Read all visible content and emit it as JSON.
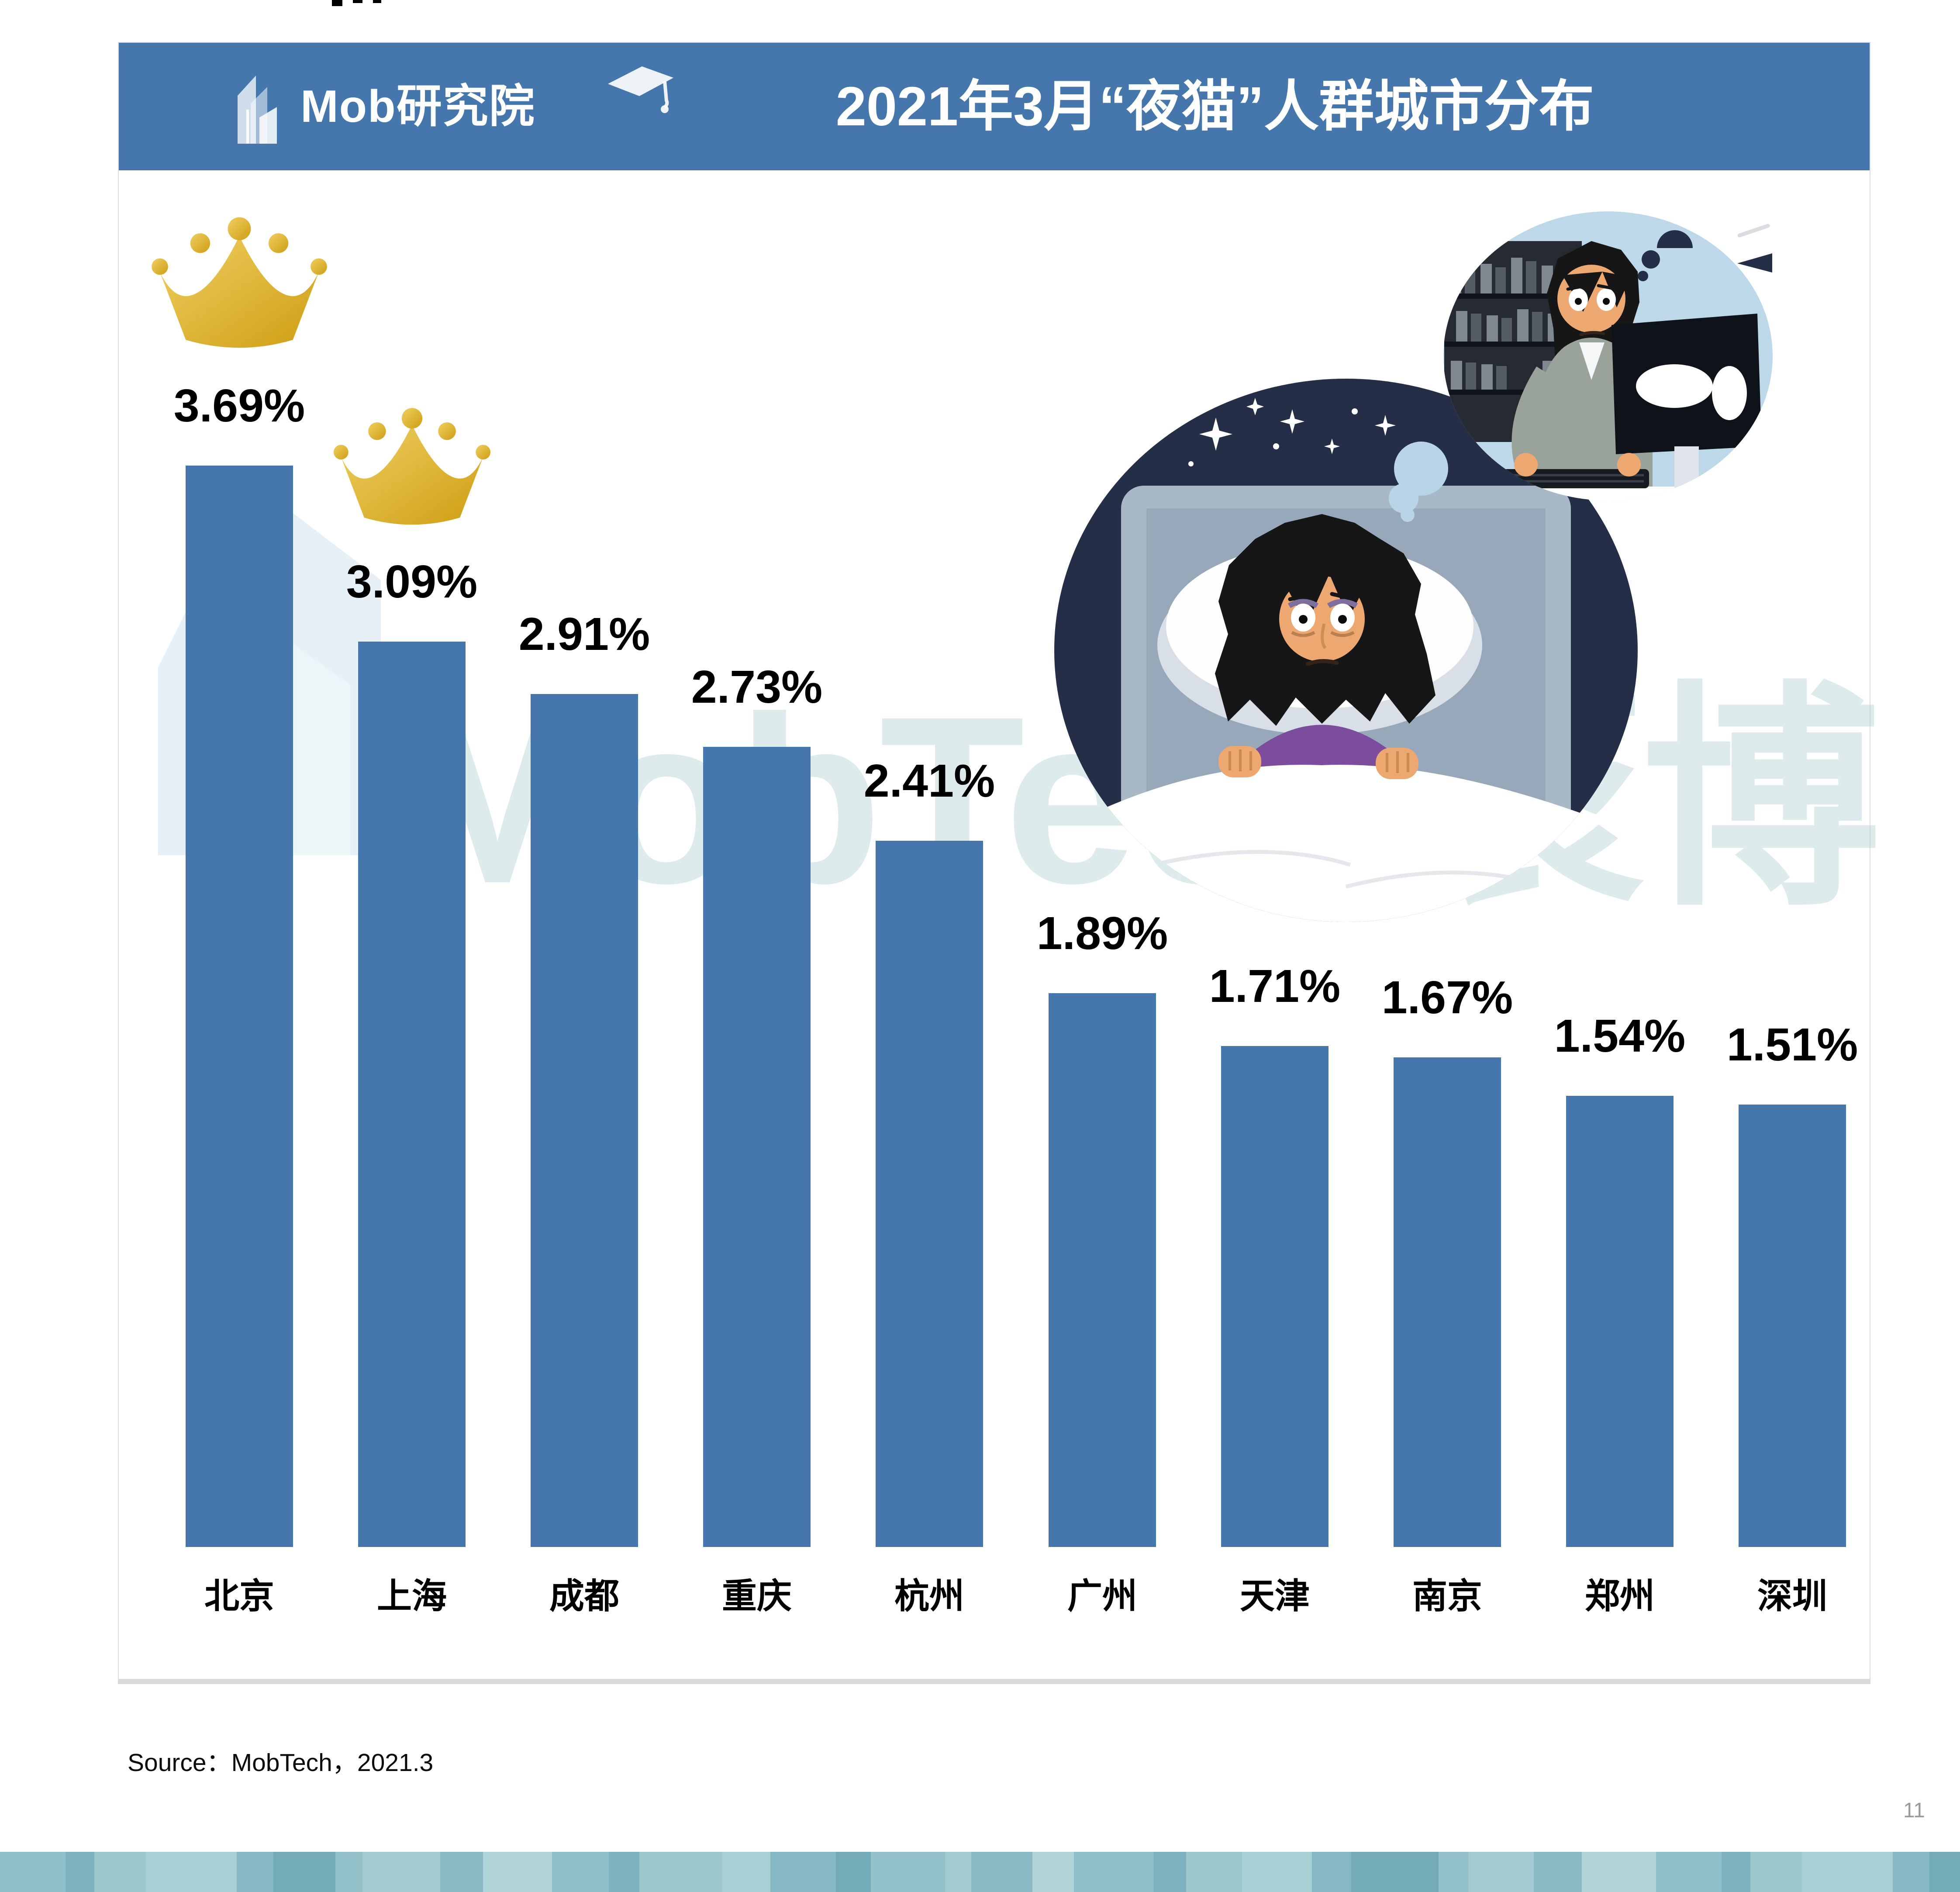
{
  "header": {
    "logo_text": "Mob研究院",
    "title": "2021年3月“夜猫”人群城市分布"
  },
  "chart_data": {
    "type": "bar",
    "title": "2021年3月“夜猫”人群城市分布",
    "categories": [
      "北京",
      "上海",
      "成都",
      "重庆",
      "杭州",
      "广州",
      "天津",
      "南京",
      "郑州",
      "深圳"
    ],
    "values": [
      3.69,
      3.09,
      2.91,
      2.73,
      2.41,
      1.89,
      1.71,
      1.67,
      1.54,
      1.51
    ],
    "value_labels": [
      "3.69%",
      "3.09%",
      "2.91%",
      "2.73%",
      "2.41%",
      "1.89%",
      "1.71%",
      "1.67%",
      "1.54%",
      "1.51%"
    ],
    "unit": "%",
    "crowned_rank_indexes": [
      0,
      1
    ],
    "bar_color": "#4577AD",
    "ylim": [
      0,
      4
    ],
    "grid": false,
    "legend": "none",
    "xlabel": "",
    "ylabel": ""
  },
  "watermark": {
    "text": "MobTech袤博"
  },
  "source": {
    "text": "Source：MobTech，2021.3"
  },
  "footer": {
    "page_number": "11",
    "mosaic_colors": [
      "#8fbfc9",
      "#7fb2bf",
      "#9cc7cd",
      "#a8cfd4",
      "#86b8c3",
      "#74abb8",
      "#94c2ca",
      "#a1cbd1",
      "#89bac4",
      "#b0d4d8"
    ]
  },
  "colors": {
    "accent_blue": "#4577AD",
    "crown_gold_light": "#efcf62",
    "crown_gold_dark": "#cf9e13",
    "night_navy": "#252e47",
    "bubble_blue": "#bdd8e8",
    "skin": "#eda872",
    "shirt_purple": "#7b4d9c",
    "watermark_teal": "#aacdd3",
    "page_number_gray": "#9a9a9a"
  }
}
